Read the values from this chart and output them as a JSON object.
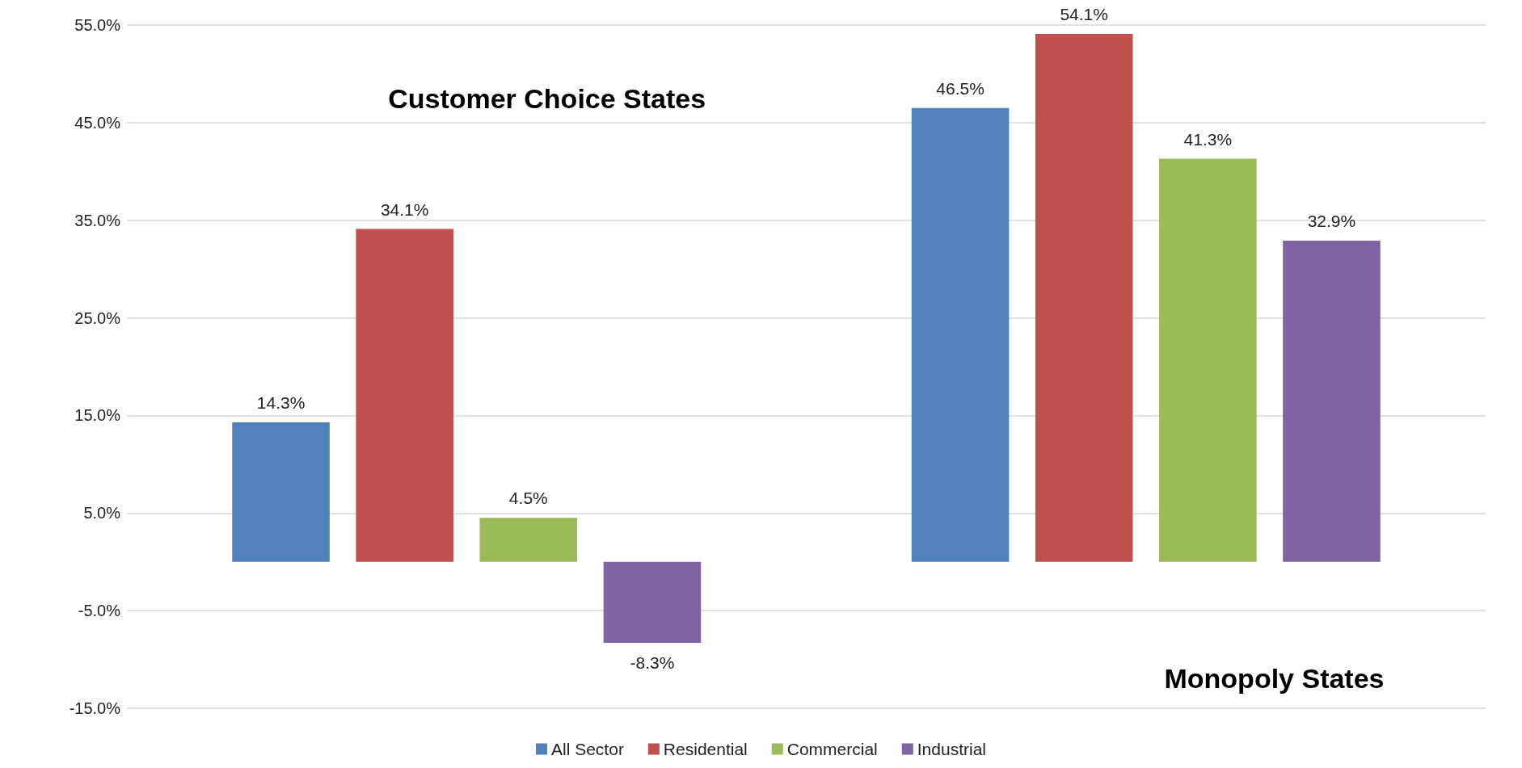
{
  "chart_data": {
    "type": "bar",
    "categories": [
      null,
      null
    ],
    "series": [
      {
        "name": "All Sector",
        "color": "#4f81bd",
        "values": [
          14.3,
          46.5
        ],
        "value_labels": [
          "14.3%",
          "46.5%"
        ]
      },
      {
        "name": "Residential",
        "color": "#c0504d",
        "values": [
          34.1,
          54.1
        ],
        "value_labels": [
          "34.1%",
          "54.1%"
        ]
      },
      {
        "name": "Commercial",
        "color": "#9bbb59",
        "values": [
          4.5,
          41.3
        ],
        "value_labels": [
          "4.5%",
          "41.3%"
        ]
      },
      {
        "name": "Industrial",
        "color": "#8064a2",
        "values": [
          -8.3,
          32.9
        ],
        "value_labels": [
          "-8.3%",
          "32.9%"
        ]
      }
    ],
    "annotations": [
      "Customer Choice States",
      "Monopoly States"
    ],
    "ylim": [
      -15,
      55
    ],
    "yticks": [
      {
        "value": -15,
        "label": "-15.0%"
      },
      {
        "value": -5,
        "label": "-5.0%"
      },
      {
        "value": 5,
        "label": "5.0%"
      },
      {
        "value": 15,
        "label": "15.0%"
      },
      {
        "value": 25,
        "label": "25.0%"
      },
      {
        "value": 35,
        "label": "35.0%"
      },
      {
        "value": 45,
        "label": "45.0%"
      },
      {
        "value": 55,
        "label": "55.0%"
      }
    ],
    "grid": "y",
    "legend": "bottom"
  }
}
